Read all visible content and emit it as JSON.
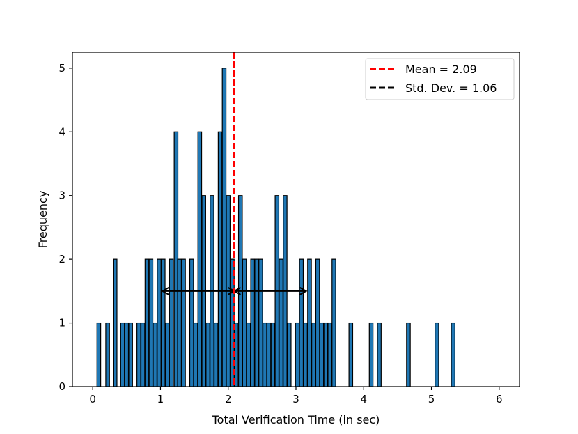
{
  "chart_data": {
    "type": "bar",
    "title": "",
    "xlabel": "Total Verification Time (in sec)",
    "ylabel": "Frequency",
    "xlim": [
      -0.3,
      6.3
    ],
    "ylim": [
      0,
      5.25
    ],
    "xticks": [
      0,
      1,
      2,
      3,
      4,
      5,
      6
    ],
    "yticks": [
      0,
      1,
      2,
      3,
      4,
      5
    ],
    "bar_width": 0.055,
    "bars": [
      {
        "x": 0.09,
        "y": 1
      },
      {
        "x": 0.22,
        "y": 1
      },
      {
        "x": 0.33,
        "y": 2
      },
      {
        "x": 0.44,
        "y": 1
      },
      {
        "x": 0.5,
        "y": 1
      },
      {
        "x": 0.56,
        "y": 1
      },
      {
        "x": 0.68,
        "y": 1
      },
      {
        "x": 0.74,
        "y": 1
      },
      {
        "x": 0.8,
        "y": 2
      },
      {
        "x": 0.86,
        "y": 2
      },
      {
        "x": 0.92,
        "y": 1
      },
      {
        "x": 0.98,
        "y": 2
      },
      {
        "x": 1.04,
        "y": 2
      },
      {
        "x": 1.1,
        "y": 1
      },
      {
        "x": 1.16,
        "y": 2
      },
      {
        "x": 1.23,
        "y": 4
      },
      {
        "x": 1.28,
        "y": 2
      },
      {
        "x": 1.34,
        "y": 2
      },
      {
        "x": 1.46,
        "y": 2
      },
      {
        "x": 1.52,
        "y": 1
      },
      {
        "x": 1.58,
        "y": 4
      },
      {
        "x": 1.64,
        "y": 3
      },
      {
        "x": 1.7,
        "y": 1
      },
      {
        "x": 1.76,
        "y": 3
      },
      {
        "x": 1.82,
        "y": 1
      },
      {
        "x": 1.88,
        "y": 4
      },
      {
        "x": 1.94,
        "y": 5
      },
      {
        "x": 2.0,
        "y": 3
      },
      {
        "x": 2.06,
        "y": 2
      },
      {
        "x": 2.12,
        "y": 1
      },
      {
        "x": 2.18,
        "y": 3
      },
      {
        "x": 2.24,
        "y": 2
      },
      {
        "x": 2.3,
        "y": 1
      },
      {
        "x": 2.36,
        "y": 2
      },
      {
        "x": 2.42,
        "y": 2
      },
      {
        "x": 2.48,
        "y": 2
      },
      {
        "x": 2.54,
        "y": 1
      },
      {
        "x": 2.6,
        "y": 1
      },
      {
        "x": 2.66,
        "y": 1
      },
      {
        "x": 2.72,
        "y": 3
      },
      {
        "x": 2.78,
        "y": 2
      },
      {
        "x": 2.84,
        "y": 3
      },
      {
        "x": 2.9,
        "y": 1
      },
      {
        "x": 3.02,
        "y": 1
      },
      {
        "x": 3.08,
        "y": 2
      },
      {
        "x": 3.14,
        "y": 1
      },
      {
        "x": 3.2,
        "y": 2
      },
      {
        "x": 3.26,
        "y": 1
      },
      {
        "x": 3.32,
        "y": 2
      },
      {
        "x": 3.38,
        "y": 1
      },
      {
        "x": 3.44,
        "y": 1
      },
      {
        "x": 3.5,
        "y": 1
      },
      {
        "x": 3.56,
        "y": 2
      },
      {
        "x": 3.81,
        "y": 1
      },
      {
        "x": 4.11,
        "y": 1
      },
      {
        "x": 4.23,
        "y": 1
      },
      {
        "x": 4.66,
        "y": 1
      },
      {
        "x": 5.08,
        "y": 1
      },
      {
        "x": 5.32,
        "y": 1
      }
    ],
    "bar_color": "#1f77b4",
    "bar_edge_color": "#000000",
    "mean": {
      "value": 2.09,
      "label": "Mean = 2.09",
      "color": "#ff0000"
    },
    "std_dev": {
      "value": 1.06,
      "label": "Std. Dev. = 1.06",
      "color": "#000000",
      "arrow_y": 1.5
    },
    "legend_placement": "top-right"
  }
}
